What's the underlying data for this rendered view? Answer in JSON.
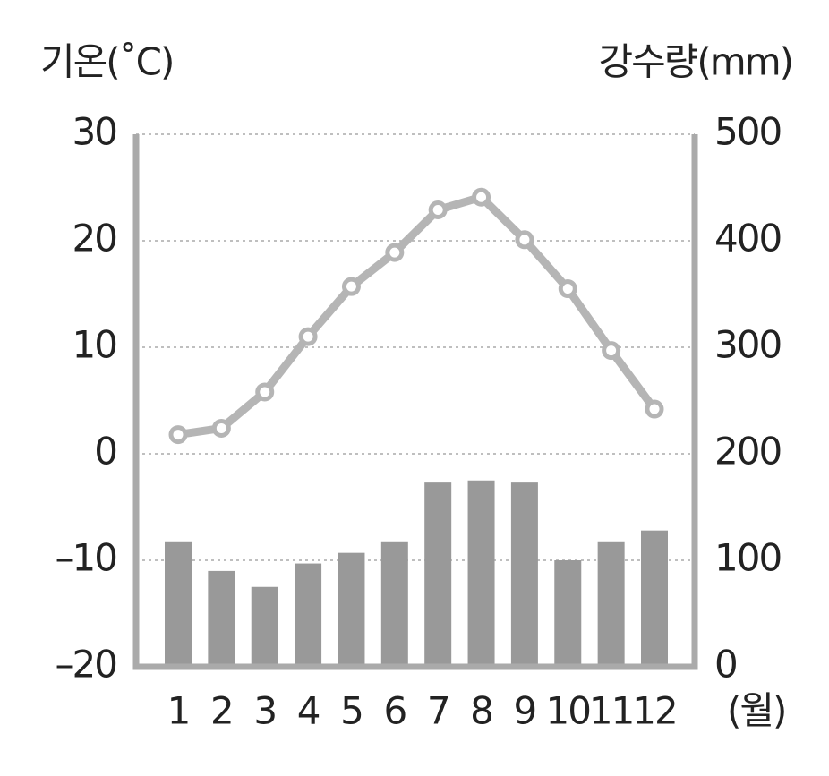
{
  "chart_data": {
    "type": "combo",
    "y_label": "기온(˚C)",
    "y2_label": "강수량(mm)",
    "x_label": "(월)",
    "categories": [
      "1",
      "2",
      "3",
      "4",
      "5",
      "6",
      "7",
      "8",
      "9",
      "10",
      "11",
      "12"
    ],
    "series": [
      {
        "type": "bar",
        "axis": "y2",
        "color": "#999999",
        "values": [
          117,
          90,
          75,
          97,
          107,
          117,
          173,
          175,
          173,
          100,
          117,
          128
        ]
      },
      {
        "type": "line",
        "color": "#b5b5b5",
        "values": [
          1.8,
          2.4,
          5.8,
          11.0,
          15.7,
          18.9,
          22.9,
          24.1,
          20.1,
          15.5,
          9.7,
          4.2
        ]
      }
    ],
    "ylim": [
      -20,
      30
    ],
    "yticks": [
      30,
      20,
      10,
      0,
      {
        "value": -10,
        "label": "–10"
      },
      {
        "value": -20,
        "label": "–20"
      }
    ],
    "y2lim": [
      0,
      500
    ],
    "y2ticks": [
      500,
      400,
      300,
      200,
      100,
      0
    ],
    "grid": true
  }
}
